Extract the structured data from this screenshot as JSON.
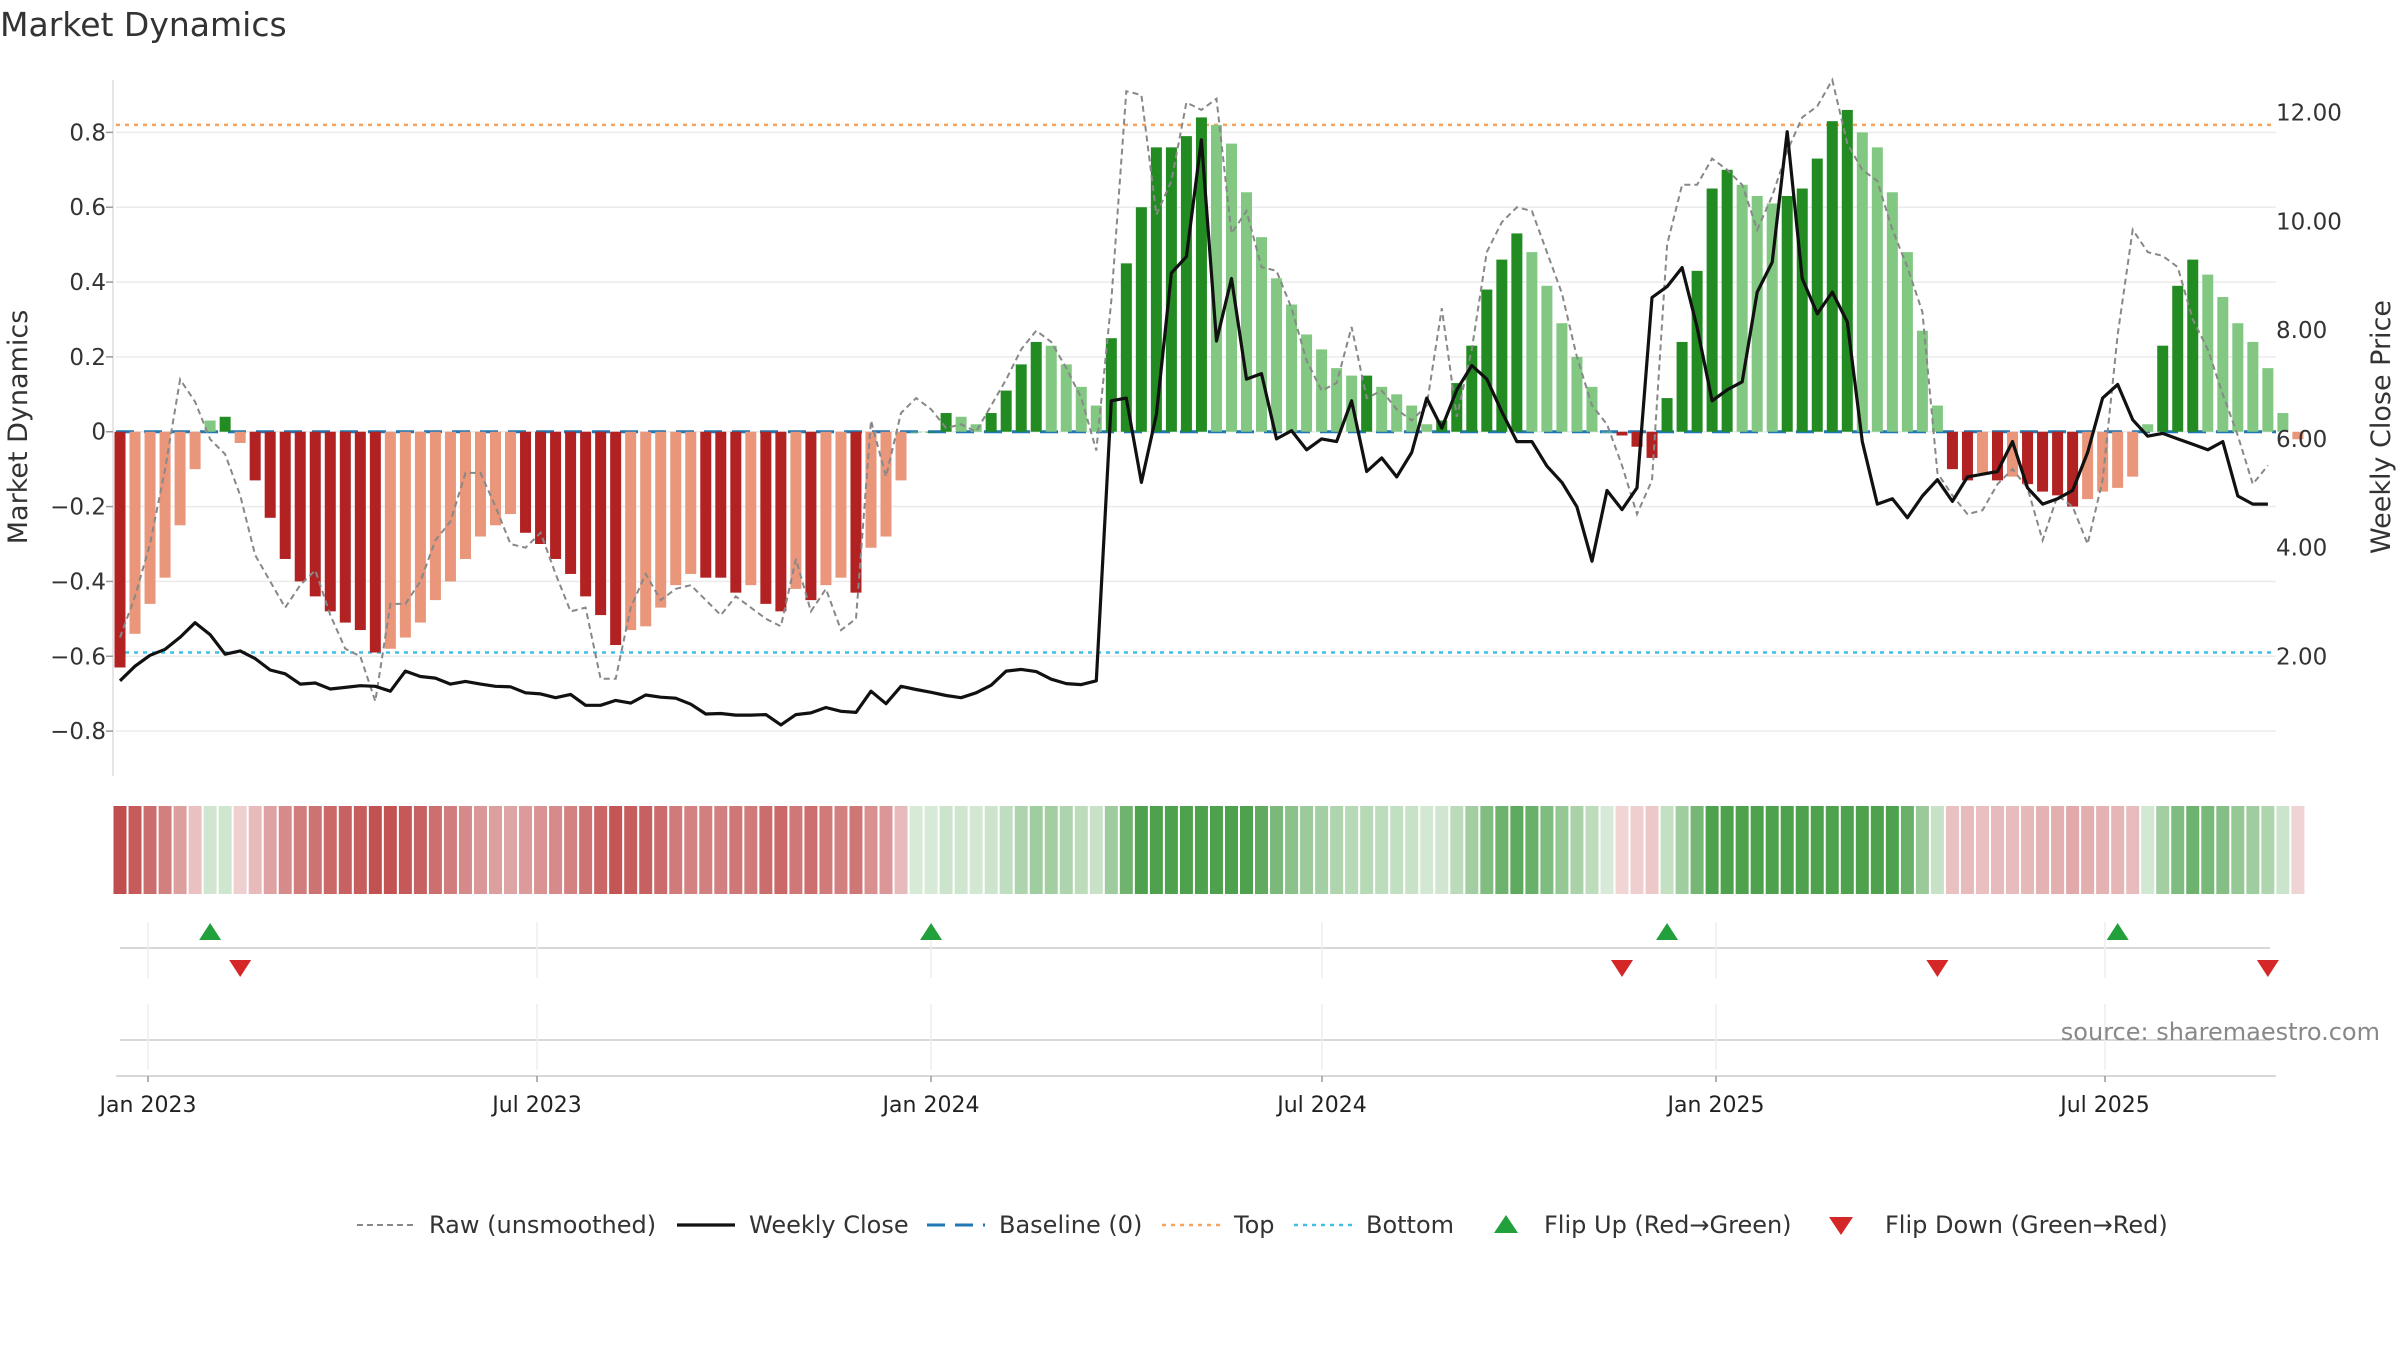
{
  "chart_data": {
    "type": "bar",
    "title": "Market Dynamics",
    "ylabel": "Market Dynamics",
    "y2label": "Weekly Close Price",
    "ylim": [
      -0.92,
      0.94
    ],
    "y2lim": [
      -0.2,
      12.6
    ],
    "yticks": [
      "0.8",
      "0.6",
      "0.4",
      "0.2",
      "0",
      "−0.2",
      "−0.4",
      "−0.6",
      "−0.8"
    ],
    "y2ticks": [
      "12.00",
      "10.00",
      "8.00",
      "6.00",
      "4.00",
      "2.00"
    ],
    "xticks": [
      "Jan 2023",
      "Jul 2023",
      "Jan 2024",
      "Jul 2024",
      "Jan 2025",
      "Jul 2025"
    ],
    "source": "source: sharemaestro.com",
    "grid": true,
    "legend_position": "bottom",
    "reference_lines": {
      "baseline": 0,
      "top": 0.82,
      "bottom": -0.59
    },
    "colors": {
      "strong_red": "#b22222",
      "weak_red": "#e9967a",
      "strong_green": "#228b22",
      "weak_green": "#82c882",
      "close_line": "#111111",
      "raw_line": "#888888",
      "baseline": "#1f77b4",
      "top": "#f4a460",
      "bottom": "#3fc1e6",
      "flip_up": "#22a03c",
      "flip_down": "#d62728"
    },
    "legend": [
      {
        "label": "Raw (unsmoothed)",
        "symbol": "dash-gray"
      },
      {
        "label": "Weekly Close",
        "symbol": "line-black"
      },
      {
        "label": "Baseline (0)",
        "symbol": "dash-blue"
      },
      {
        "label": "Top",
        "symbol": "dot-orange"
      },
      {
        "label": "Bottom",
        "symbol": "dot-cyan"
      },
      {
        "label": "Flip Up (Red→Green)",
        "symbol": "triangle-up"
      },
      {
        "label": "Flip Down (Green→Red)",
        "symbol": "triangle-down"
      }
    ],
    "series": [
      {
        "name": "Market Dynamics",
        "values": [
          -0.63,
          -0.54,
          -0.46,
          -0.39,
          -0.25,
          -0.1,
          0.03,
          0.04,
          -0.03,
          -0.13,
          -0.23,
          -0.34,
          -0.4,
          -0.44,
          -0.48,
          -0.51,
          -0.53,
          -0.59,
          -0.58,
          -0.55,
          -0.51,
          -0.45,
          -0.4,
          -0.34,
          -0.28,
          -0.25,
          -0.22,
          -0.27,
          -0.3,
          -0.34,
          -0.38,
          -0.44,
          -0.49,
          -0.57,
          -0.53,
          -0.52,
          -0.47,
          -0.41,
          -0.38,
          -0.39,
          -0.39,
          -0.43,
          -0.41,
          -0.46,
          -0.48,
          -0.42,
          -0.45,
          -0.41,
          -0.39,
          -0.43,
          -0.31,
          -0.28,
          -0.13,
          0.0,
          0.0,
          0.05,
          0.04,
          0.02,
          0.05,
          0.11,
          0.18,
          0.24,
          0.23,
          0.18,
          0.12,
          0.07,
          0.25,
          0.45,
          0.6,
          0.76,
          0.76,
          0.79,
          0.84,
          0.82,
          0.77,
          0.64,
          0.52,
          0.41,
          0.34,
          0.26,
          0.22,
          0.17,
          0.15,
          0.15,
          0.12,
          0.1,
          0.07,
          0.02,
          0.03,
          0.13,
          0.23,
          0.38,
          0.46,
          0.53,
          0.48,
          0.39,
          0.29,
          0.2,
          0.12,
          0.0,
          -0.01,
          -0.04,
          -0.07,
          0.09,
          0.24,
          0.43,
          0.65,
          0.7,
          0.66,
          0.63,
          0.61,
          0.63,
          0.65,
          0.73,
          0.83,
          0.86,
          0.8,
          0.76,
          0.64,
          0.48,
          0.27,
          0.07,
          -0.1,
          -0.13,
          -0.11,
          -0.13,
          -0.12,
          -0.14,
          -0.16,
          -0.17,
          -0.2,
          -0.18,
          -0.16,
          -0.15,
          -0.12,
          0.02,
          0.23,
          0.39,
          0.46,
          0.42,
          0.36,
          0.29,
          0.24,
          0.17,
          0.05,
          -0.02
        ]
      },
      {
        "name": "Raw (unsmoothed)",
        "values": [
          -0.55,
          -0.44,
          -0.3,
          -0.1,
          0.14,
          0.08,
          -0.02,
          -0.06,
          -0.17,
          -0.33,
          -0.4,
          -0.47,
          -0.41,
          -0.37,
          -0.49,
          -0.58,
          -0.6,
          -0.72,
          -0.46,
          -0.46,
          -0.4,
          -0.29,
          -0.24,
          -0.11,
          -0.11,
          -0.2,
          -0.3,
          -0.31,
          -0.27,
          -0.38,
          -0.48,
          -0.47,
          -0.66,
          -0.66,
          -0.47,
          -0.38,
          -0.45,
          -0.42,
          -0.41,
          -0.45,
          -0.49,
          -0.44,
          -0.47,
          -0.5,
          -0.52,
          -0.34,
          -0.48,
          -0.42,
          -0.53,
          -0.5,
          0.03,
          -0.12,
          0.05,
          0.09,
          0.06,
          0.01,
          0.02,
          0.0,
          0.07,
          0.14,
          0.22,
          0.27,
          0.24,
          0.17,
          0.09,
          -0.05,
          0.35,
          0.91,
          0.9,
          0.58,
          0.67,
          0.88,
          0.86,
          0.89,
          0.53,
          0.59,
          0.44,
          0.43,
          0.33,
          0.19,
          0.11,
          0.13,
          0.28,
          0.09,
          0.11,
          0.06,
          0.03,
          0.07,
          0.33,
          0.04,
          0.22,
          0.48,
          0.56,
          0.6,
          0.59,
          0.48,
          0.37,
          0.2,
          0.07,
          0.02,
          -0.09,
          -0.22,
          -0.13,
          0.5,
          0.66,
          0.66,
          0.73,
          0.7,
          0.66,
          0.54,
          0.63,
          0.75,
          0.84,
          0.87,
          0.94,
          0.77,
          0.7,
          0.67,
          0.54,
          0.44,
          0.32,
          -0.11,
          -0.17,
          -0.22,
          -0.21,
          -0.14,
          -0.1,
          -0.15,
          -0.29,
          -0.17,
          -0.2,
          -0.3,
          -0.13,
          0.26,
          0.54,
          0.48,
          0.47,
          0.44,
          0.3,
          0.22,
          0.1,
          -0.01,
          -0.14,
          -0.09
        ]
      },
      {
        "name": "Weekly Close",
        "values": [
          1.55,
          1.82,
          2.02,
          2.13,
          2.35,
          2.62,
          2.4,
          2.04,
          2.1,
          1.96,
          1.75,
          1.68,
          1.49,
          1.51,
          1.4,
          1.43,
          1.46,
          1.45,
          1.36,
          1.73,
          1.63,
          1.6,
          1.49,
          1.54,
          1.49,
          1.45,
          1.44,
          1.33,
          1.31,
          1.24,
          1.3,
          1.1,
          1.1,
          1.19,
          1.14,
          1.29,
          1.25,
          1.23,
          1.12,
          0.94,
          0.95,
          0.92,
          0.92,
          0.93,
          0.74,
          0.93,
          0.96,
          1.06,
          0.99,
          0.97,
          1.36,
          1.13,
          1.45,
          1.39,
          1.34,
          1.28,
          1.24,
          1.33,
          1.47,
          1.73,
          1.76,
          1.72,
          1.58,
          1.5,
          1.48,
          1.55,
          6.7,
          6.75,
          5.2,
          6.45,
          9.05,
          9.35,
          11.5,
          7.8,
          8.95,
          7.1,
          7.2,
          6.0,
          6.15,
          5.8,
          6.0,
          5.95,
          6.7,
          5.4,
          5.65,
          5.3,
          5.75,
          6.75,
          6.2,
          6.9,
          7.35,
          7.1,
          6.5,
          5.95,
          5.95,
          5.5,
          5.2,
          4.75,
          3.75,
          5.05,
          4.7,
          5.1,
          8.6,
          8.8,
          9.15,
          8.05,
          6.7,
          6.9,
          7.05,
          8.7,
          9.25,
          11.65,
          8.95,
          8.3,
          8.7,
          8.15,
          5.95,
          4.8,
          4.9,
          4.55,
          4.95,
          5.25,
          4.85,
          5.3,
          5.35,
          5.4,
          5.95,
          5.1,
          4.8,
          4.9,
          5.05,
          5.75,
          6.75,
          7.0,
          6.35,
          6.05,
          6.1,
          6.0,
          5.9,
          5.8,
          5.95,
          4.95,
          4.8,
          4.8
        ]
      }
    ],
    "flip_up": [
      {
        "index": 6
      },
      {
        "index": 54
      },
      {
        "index": 103
      },
      {
        "index": 133
      }
    ],
    "flip_down": [
      {
        "index": 8
      },
      {
        "index": 100
      },
      {
        "index": 121
      },
      {
        "index": 143
      }
    ]
  }
}
